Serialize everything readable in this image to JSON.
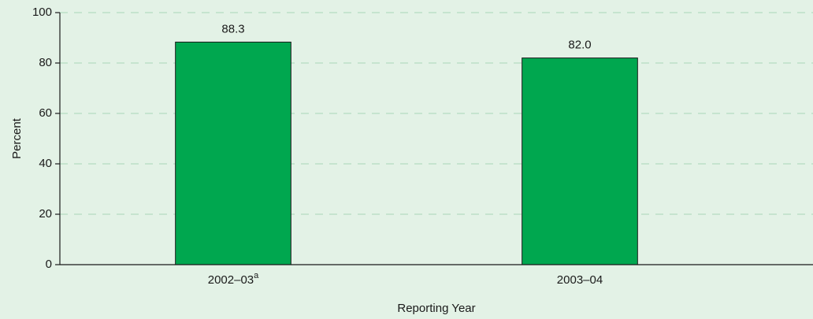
{
  "chart_data": {
    "type": "bar",
    "categories": [
      "2002–03",
      "2003–04"
    ],
    "category_superscripts": [
      "a",
      null
    ],
    "values": [
      88.3,
      82.0
    ],
    "value_labels": [
      "88.3",
      "82.0"
    ],
    "color": "#00a74f",
    "ylim": [
      0,
      100
    ],
    "yticks": [
      0,
      20,
      40,
      60,
      80,
      100
    ],
    "grid": true,
    "y_label": "Percent",
    "x_label": "Reporting Year"
  }
}
